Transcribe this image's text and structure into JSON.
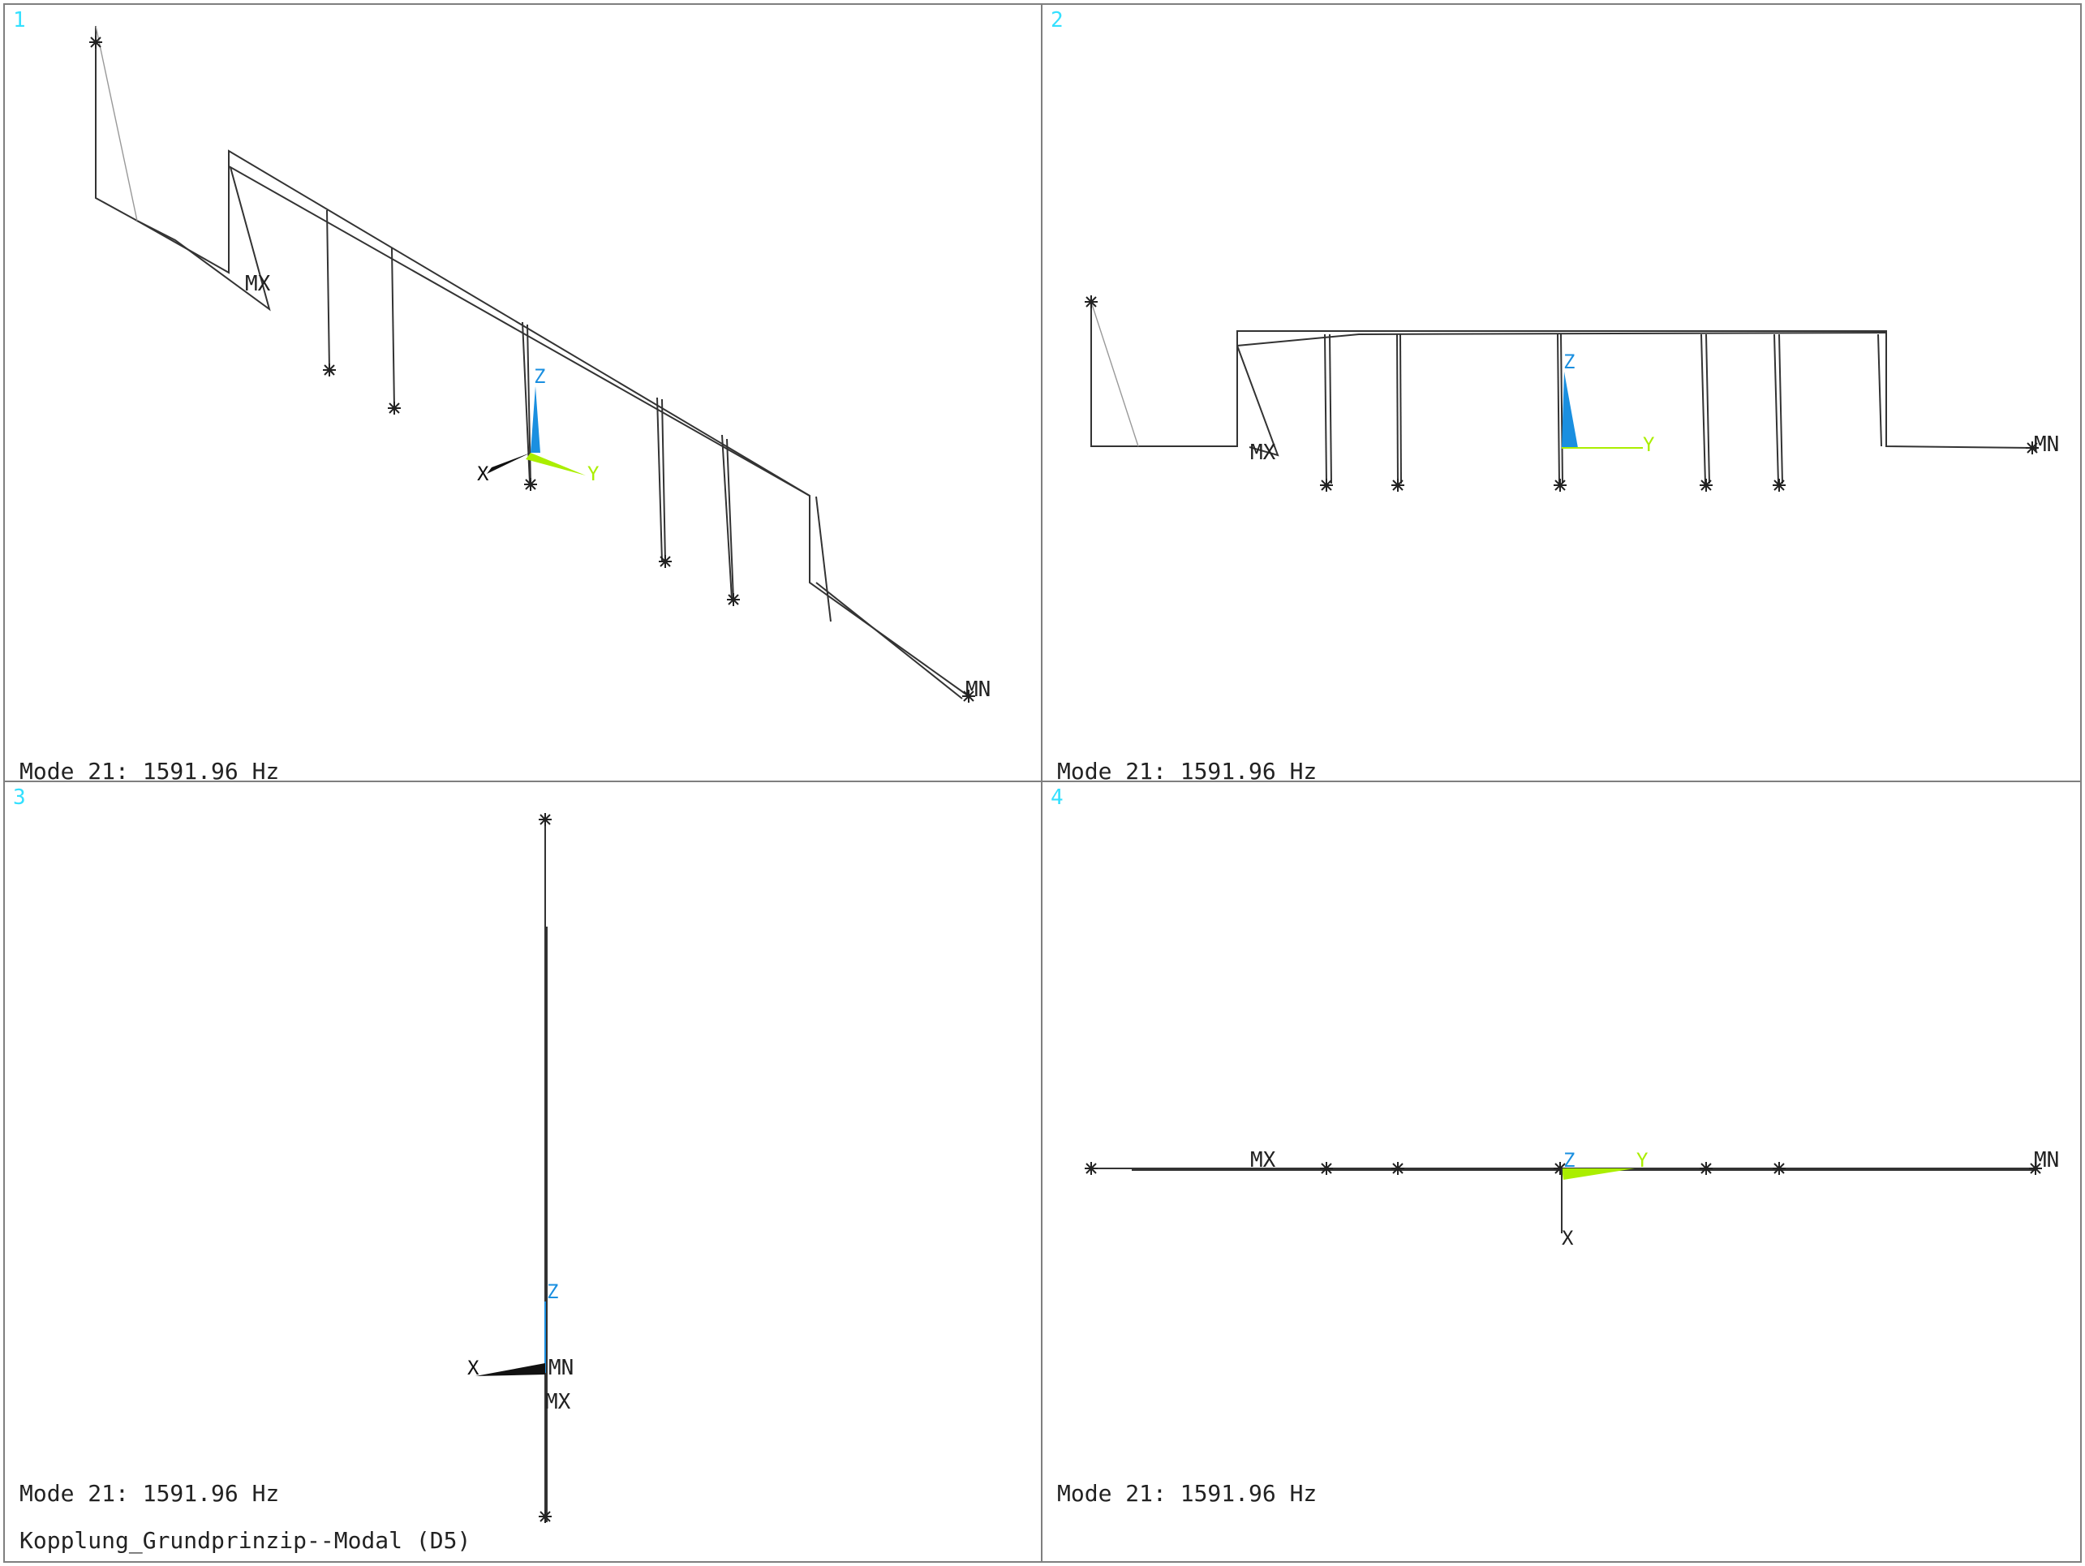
{
  "viewports": [
    {
      "number": "1",
      "mode_text": "Mode 21: 1591.96 Hz",
      "mx_label": "MX",
      "mn_label": "MN"
    },
    {
      "number": "2",
      "mode_text": "Mode 21: 1591.96 Hz",
      "mx_label": "MX",
      "mn_label": "MN"
    },
    {
      "number": "3",
      "mode_text": "Mode 21: 1591.96 Hz",
      "mx_label": "MX",
      "mn_label": "MN"
    },
    {
      "number": "4",
      "mode_text": "Mode 21: 1591.96 Hz",
      "mx_label": "MX",
      "mn_label": "MN"
    }
  ],
  "model_title": "Kopplung_Grundprinzip--Modal (D5)",
  "triad": {
    "x": "X",
    "y": "Y",
    "z": "Z"
  },
  "colors": {
    "viewport_number": "#33e0ff",
    "z_axis": "#1a8fe0",
    "y_axis": "#aaee00",
    "x_axis": "#111111",
    "border": "#7f7f7f"
  },
  "icons": [
    "support-marker-icon",
    "axis-triad-icon"
  ]
}
